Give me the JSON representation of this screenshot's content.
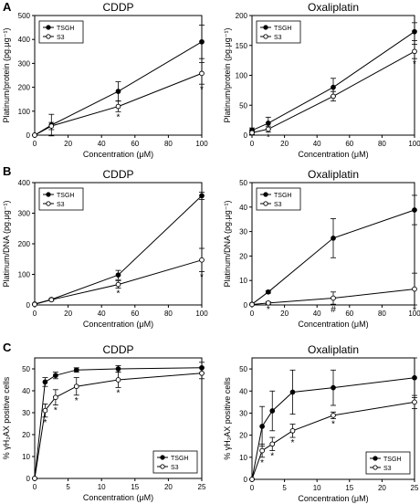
{
  "panel_letters": [
    "A",
    "B",
    "C"
  ],
  "chart_data": [
    {
      "id": "A-left",
      "type": "line",
      "title": "CDDP",
      "xlabel": "Concentration (μM)",
      "ylabel": "Platinum/protein (pg.μg⁻¹)",
      "xlim": [
        0,
        100
      ],
      "ylim": [
        0,
        500
      ],
      "xticks": [
        0,
        20,
        40,
        60,
        80,
        100
      ],
      "yticks": [
        0,
        100,
        200,
        300,
        400,
        500
      ],
      "legend": {
        "position": "top-left",
        "entries": [
          "TSGH",
          "S3"
        ]
      },
      "series": [
        {
          "name": "TSGH",
          "marker": "filled",
          "x": [
            0,
            10,
            50,
            100
          ],
          "y": [
            0,
            42,
            183,
            390
          ],
          "err": [
            0,
            45,
            40,
            70
          ]
        },
        {
          "name": "S3",
          "marker": "open",
          "x": [
            0,
            10,
            50,
            100
          ],
          "y": [
            0,
            38,
            120,
            258
          ],
          "err": [
            0,
            15,
            22,
            45
          ]
        }
      ],
      "annotations": [
        {
          "x": 50,
          "y": 120,
          "text": "*"
        },
        {
          "x": 100,
          "y": 258,
          "text": "*"
        }
      ]
    },
    {
      "id": "A-right",
      "type": "line",
      "title": "Oxaliplatin",
      "xlabel": "Concentration (μM)",
      "ylabel": "Platinum/protein (pg.μg⁻¹)",
      "xlim": [
        0,
        100
      ],
      "ylim": [
        0,
        200
      ],
      "xticks": [
        0,
        20,
        40,
        60,
        80,
        100
      ],
      "yticks": [
        0,
        50,
        100,
        150,
        200
      ],
      "legend": {
        "position": "top-left",
        "entries": [
          "TSGH",
          "S3"
        ]
      },
      "series": [
        {
          "name": "TSGH",
          "marker": "filled",
          "x": [
            0,
            10,
            50,
            100
          ],
          "y": [
            8,
            20,
            80,
            173
          ],
          "err": [
            4,
            10,
            15,
            15
          ]
        },
        {
          "name": "S3",
          "marker": "open",
          "x": [
            0,
            10,
            50,
            100
          ],
          "y": [
            4,
            10,
            65,
            140
          ],
          "err": [
            3,
            5,
            8,
            12
          ]
        }
      ],
      "annotations": [
        {
          "x": 10,
          "y": 10,
          "text": "*"
        },
        {
          "x": 100,
          "y": 140,
          "text": "*"
        }
      ]
    },
    {
      "id": "B-left",
      "type": "line",
      "title": "CDDP",
      "xlabel": "Concentration (μM)",
      "ylabel": "Platinum/DNA (pg.μg⁻¹)",
      "xlim": [
        0,
        100
      ],
      "ylim": [
        0,
        400
      ],
      "xticks": [
        0,
        20,
        40,
        60,
        80,
        100
      ],
      "yticks": [
        0,
        100,
        200,
        300,
        400
      ],
      "legend": {
        "position": "top-left",
        "entries": [
          "TSGH",
          "S3"
        ]
      },
      "series": [
        {
          "name": "TSGH",
          "marker": "filled",
          "x": [
            0,
            10,
            50,
            100
          ],
          "y": [
            3,
            18,
            98,
            357
          ],
          "err": [
            0,
            3,
            15,
            12
          ]
        },
        {
          "name": "S3",
          "marker": "open",
          "x": [
            0,
            10,
            50,
            100
          ],
          "y": [
            2,
            17,
            67,
            147
          ],
          "err": [
            0,
            3,
            12,
            38
          ]
        }
      ],
      "annotations": [
        {
          "x": 50,
          "y": 67,
          "text": "*"
        },
        {
          "x": 100,
          "y": 147,
          "text": "*"
        }
      ]
    },
    {
      "id": "B-right",
      "type": "line",
      "title": "Oxaliplatin",
      "xlabel": "Concentration (μM)",
      "ylabel": "Platinum/DNA (pg.μg⁻¹)",
      "xlim": [
        0,
        100
      ],
      "ylim": [
        0,
        50
      ],
      "xticks": [
        0,
        20,
        40,
        60,
        80,
        100
      ],
      "yticks": [
        0,
        10,
        20,
        30,
        40,
        50
      ],
      "legend": {
        "position": "top-left",
        "entries": [
          "TSGH",
          "S3"
        ]
      },
      "series": [
        {
          "name": "TSGH",
          "marker": "filled",
          "x": [
            0,
            10,
            50,
            100
          ],
          "y": [
            0.3,
            5.3,
            27.3,
            38.8
          ],
          "err": [
            0,
            0.5,
            8,
            6
          ]
        },
        {
          "name": "S3",
          "marker": "open",
          "x": [
            0,
            10,
            50,
            100
          ],
          "y": [
            0.2,
            0.8,
            2.8,
            6.5
          ],
          "err": [
            0,
            0.5,
            2.5,
            6.5
          ]
        }
      ],
      "annotations": [
        {
          "x": 10,
          "y": 0.8,
          "text": "*"
        },
        {
          "x": 50,
          "y": 2.8,
          "text": "#"
        },
        {
          "x": 100,
          "y": 6.5,
          "text": "*"
        }
      ]
    },
    {
      "id": "C-left",
      "type": "line",
      "title": "CDDP",
      "xlabel": "Concentration (μM)",
      "ylabel": "% γH₂AX positive cells",
      "xlim": [
        0,
        25
      ],
      "ylim": [
        0,
        55
      ],
      "xticks": [
        0,
        5,
        10,
        15,
        20,
        25
      ],
      "yticks": [
        0,
        10,
        20,
        30,
        40,
        50
      ],
      "legend": {
        "position": "bottom-right",
        "entries": [
          "TSGH",
          "S3"
        ]
      },
      "series": [
        {
          "name": "TSGH",
          "marker": "filled",
          "x": [
            0,
            1.56,
            3.125,
            6.25,
            12.5,
            25
          ],
          "y": [
            0,
            44,
            47,
            49.5,
            50,
            50.5
          ],
          "err": [
            0,
            2,
            1.5,
            1,
            1.5,
            2.5
          ]
        },
        {
          "name": "S3",
          "marker": "open",
          "x": [
            0,
            1.56,
            3.125,
            6.25,
            12.5,
            25
          ],
          "y": [
            0,
            31,
            37,
            42,
            45,
            48
          ],
          "err": [
            0,
            3,
            3.5,
            4,
            3.5,
            2.5
          ]
        }
      ],
      "annotations": [
        {
          "x": 1.56,
          "y": 31,
          "text": "*"
        },
        {
          "x": 3.125,
          "y": 37,
          "text": "*"
        },
        {
          "x": 6.25,
          "y": 42,
          "text": "*"
        },
        {
          "x": 12.5,
          "y": 45,
          "text": "*"
        }
      ]
    },
    {
      "id": "C-right",
      "type": "line",
      "title": "Oxaliplatin",
      "xlabel": "Concentration (μM)",
      "ylabel": "% γH₂AX positive cells",
      "xlim": [
        0,
        25
      ],
      "ylim": [
        0,
        55
      ],
      "xticks": [
        0,
        5,
        10,
        15,
        20,
        25
      ],
      "yticks": [
        0,
        10,
        20,
        30,
        40,
        50
      ],
      "legend": {
        "position": "bottom-right",
        "entries": [
          "TSGH",
          "S3"
        ]
      },
      "series": [
        {
          "name": "TSGH",
          "marker": "filled",
          "x": [
            0,
            1.56,
            3.125,
            6.25,
            12.5,
            25
          ],
          "y": [
            0,
            24,
            31,
            39.5,
            41.5,
            46
          ],
          "err": [
            0,
            9,
            9,
            10,
            8,
            9
          ]
        },
        {
          "name": "S3",
          "marker": "open",
          "x": [
            0,
            1.56,
            3.125,
            6.25,
            12.5,
            25
          ],
          "y": [
            0,
            13,
            16,
            22,
            29,
            35
          ],
          "err": [
            0,
            3,
            3,
            3,
            1.5,
            3
          ]
        }
      ],
      "annotations": [
        {
          "x": 1.56,
          "y": 13,
          "text": "*"
        },
        {
          "x": 3.125,
          "y": 16,
          "text": "*"
        },
        {
          "x": 6.25,
          "y": 22,
          "text": "*"
        },
        {
          "x": 12.5,
          "y": 29,
          "text": "*"
        }
      ]
    }
  ]
}
